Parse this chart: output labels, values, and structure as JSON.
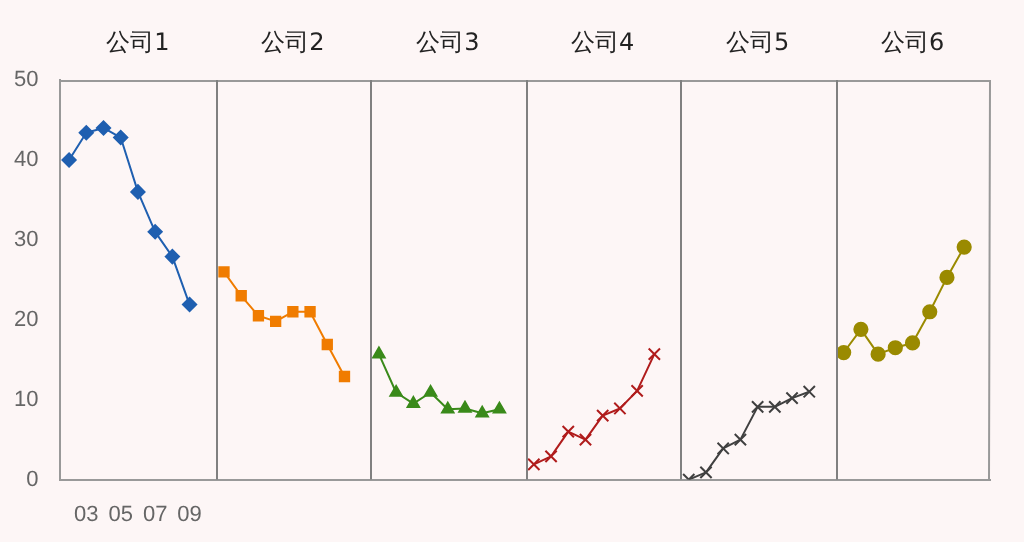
{
  "chart_data": {
    "type": "line",
    "categories": [
      null,
      "03",
      null,
      "05",
      null,
      "07",
      null,
      "09",
      null,
      null,
      null,
      null,
      null,
      null,
      null,
      null,
      null,
      null,
      null,
      null,
      null,
      null,
      null,
      null,
      null,
      null,
      null,
      null,
      null,
      null,
      null,
      null,
      null,
      null,
      null,
      null,
      null,
      null,
      null,
      null,
      null,
      null,
      null,
      null,
      null,
      null,
      null,
      null,
      null,
      null,
      null,
      null,
      null,
      null
    ],
    "annotations": [
      "公司1",
      "公司2",
      "公司3",
      "公司4",
      "公司5",
      "公司6"
    ],
    "ylim": [
      0,
      50
    ],
    "yticks": [
      0,
      10,
      20,
      30,
      40,
      50
    ],
    "grid": false,
    "legend": false,
    "series": [
      {
        "color": "#1f5fb0",
        "marker": "diamond",
        "values": [
          40,
          43.4,
          44,
          42.8,
          36,
          31,
          27.9,
          21.9,
          null,
          null,
          null,
          null,
          null,
          null,
          null,
          null,
          null,
          null,
          null,
          null,
          null,
          null,
          null,
          null,
          null,
          null,
          null,
          null,
          null,
          null,
          null,
          null,
          null,
          null,
          null,
          null,
          null,
          null,
          null,
          null,
          null,
          null,
          null,
          null,
          null,
          null,
          null,
          null,
          null,
          null,
          null,
          null,
          null,
          null
        ]
      },
      {
        "color": "#f07c00",
        "marker": "square",
        "values": [
          null,
          null,
          null,
          null,
          null,
          null,
          null,
          null,
          null,
          26,
          23,
          20.5,
          19.8,
          21,
          21,
          16.9,
          12.9,
          null,
          null,
          null,
          null,
          null,
          null,
          null,
          null,
          null,
          null,
          null,
          null,
          null,
          null,
          null,
          null,
          null,
          null,
          null,
          null,
          null,
          null,
          null,
          null,
          null,
          null,
          null,
          null,
          null,
          null,
          null,
          null,
          null,
          null,
          null,
          null,
          null
        ]
      },
      {
        "color": "#3a8a1a",
        "marker": "triangle",
        "values": [
          null,
          null,
          null,
          null,
          null,
          null,
          null,
          null,
          null,
          null,
          null,
          null,
          null,
          null,
          null,
          null,
          null,
          null,
          15.7,
          10.9,
          9.5,
          10.9,
          8.8,
          8.9,
          8.3,
          8.8,
          null,
          null,
          null,
          null,
          null,
          null,
          null,
          null,
          null,
          null,
          null,
          null,
          null,
          null,
          null,
          null,
          null,
          null,
          null,
          null,
          null,
          null,
          null,
          null,
          null,
          null,
          null,
          null
        ]
      },
      {
        "color": "#b01c1c",
        "marker": "cross",
        "values": [
          null,
          null,
          null,
          null,
          null,
          null,
          null,
          null,
          null,
          null,
          null,
          null,
          null,
          null,
          null,
          null,
          null,
          null,
          null,
          null,
          null,
          null,
          null,
          null,
          null,
          null,
          null,
          1.9,
          2.9,
          6,
          5,
          8,
          8.9,
          11.1,
          15.7,
          null,
          null,
          null,
          null,
          null,
          null,
          null,
          null,
          null,
          null,
          null,
          null,
          null,
          null,
          null,
          null,
          null,
          null,
          null
        ]
      },
      {
        "color": "#404040",
        "marker": "cross",
        "values": [
          null,
          null,
          null,
          null,
          null,
          null,
          null,
          null,
          null,
          null,
          null,
          null,
          null,
          null,
          null,
          null,
          null,
          null,
          null,
          null,
          null,
          null,
          null,
          null,
          null,
          null,
          null,
          null,
          null,
          null,
          null,
          null,
          null,
          null,
          null,
          null,
          0,
          0.9,
          3.9,
          5,
          9.1,
          9.1,
          10.2,
          11,
          null,
          null,
          null,
          null,
          null,
          null,
          null,
          null,
          null,
          null
        ]
      },
      {
        "color": "#9a8a00",
        "marker": "circle",
        "values": [
          null,
          null,
          null,
          null,
          null,
          null,
          null,
          null,
          null,
          null,
          null,
          null,
          null,
          null,
          null,
          null,
          null,
          null,
          null,
          null,
          null,
          null,
          null,
          null,
          null,
          null,
          null,
          null,
          null,
          null,
          null,
          null,
          null,
          null,
          null,
          null,
          null,
          null,
          null,
          null,
          null,
          null,
          null,
          null,
          null,
          15.9,
          18.8,
          15.7,
          16.5,
          17.1,
          21,
          25.3,
          29.1,
          null
        ]
      }
    ]
  }
}
